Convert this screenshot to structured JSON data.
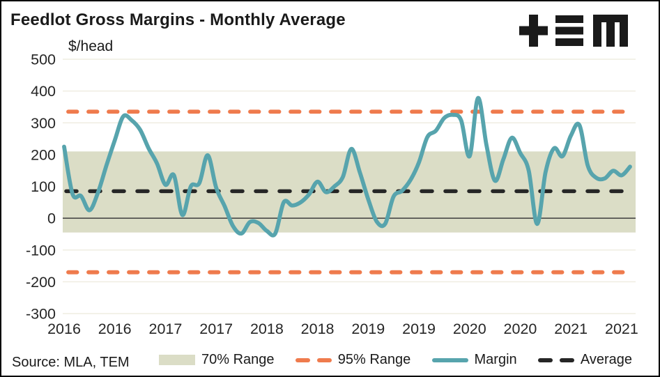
{
  "header": {
    "title": "Feedlot Gross Margins - Monthly Average",
    "unit_label": "$/head",
    "logo_name": "TEM"
  },
  "footer": {
    "source": "Source: MLA, TEM"
  },
  "legend": [
    {
      "label": "70% Range",
      "swatch": "band",
      "color": "#dbddc6"
    },
    {
      "label": "95% Range",
      "swatch": "dashes",
      "color": "#ef7b4d"
    },
    {
      "label": "Margin",
      "swatch": "line",
      "color": "#57a4ad"
    },
    {
      "label": "Average",
      "swatch": "dashes",
      "color": "#262626"
    }
  ],
  "chart_data": {
    "type": "line",
    "title": "Feedlot Gross Margins - Monthly Average",
    "ylabel": "$/head",
    "ylim": [
      -300,
      500
    ],
    "y_ticks": [
      500,
      400,
      300,
      200,
      100,
      0,
      -100,
      -200,
      -300
    ],
    "x_tick_labels": [
      "2016",
      "2016",
      "2017",
      "2017",
      "2018",
      "2018",
      "2019",
      "2019",
      "2020",
      "2020",
      "2021",
      "2021"
    ],
    "x_tick_months": [
      0,
      6,
      12,
      18,
      24,
      30,
      36,
      42,
      48,
      54,
      60,
      66
    ],
    "frequency": "monthly",
    "start": "Jan 2016",
    "end": "Aug 2021",
    "grid": true,
    "legend_position": "bottom",
    "band_70pct": {
      "lower": -45,
      "upper": 210,
      "color": "#dbddc6"
    },
    "range_95pct": {
      "lower": -170,
      "upper": 335,
      "color": "#ef7b4d"
    },
    "average": 85,
    "zero_line": 0,
    "series": [
      {
        "name": "Margin",
        "color": "#57a4ad",
        "values": [
          225,
          76,
          70,
          25,
          80,
          165,
          245,
          320,
          308,
          278,
          220,
          172,
          105,
          135,
          10,
          100,
          110,
          198,
          96,
          38,
          -25,
          -48,
          -12,
          -15,
          -40,
          -48,
          50,
          40,
          50,
          75,
          115,
          82,
          100,
          130,
          218,
          145,
          60,
          -10,
          -18,
          68,
          86,
          120,
          175,
          255,
          275,
          315,
          325,
          308,
          195,
          378,
          230,
          118,
          185,
          253,
          205,
          150,
          -18,
          145,
          220,
          195,
          260,
          293,
          165,
          127,
          125,
          149,
          135,
          162
        ]
      }
    ],
    "style": {
      "grid_color": "#efede1",
      "zero_line_color": "#3c3c3c",
      "axis_text_color": "#262626",
      "average_color": "#262626",
      "background": "#ffffff"
    }
  }
}
